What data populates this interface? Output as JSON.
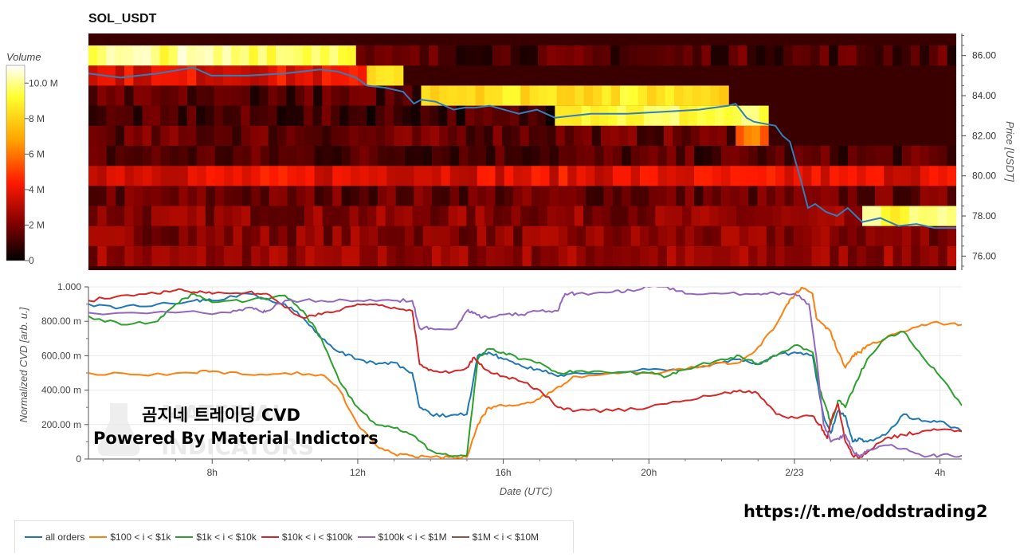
{
  "chart_data": [
    {
      "type": "heatmap",
      "title": "SOL_USDT",
      "colorbar": {
        "label": "Volume",
        "ticks": [
          "0",
          "2 M",
          "4 M",
          "6 M",
          "8 M",
          "10.0 M"
        ],
        "range": [
          0,
          11000000
        ],
        "colorscale": [
          "#000000",
          "#8b0000",
          "#ff0000",
          "#ffa500",
          "#ffff00",
          "#ffffff"
        ]
      },
      "y_axis": {
        "label": "Price [USDT]",
        "ticks": [
          "76.00",
          "78.00",
          "80.00",
          "82.00",
          "84.00",
          "86.00"
        ],
        "range": [
          75.3,
          87.1
        ],
        "position": "right"
      },
      "x_axis": {
        "range_hours": [
          4.6,
          28.6
        ],
        "grid": false
      },
      "price_bin_edges": [
        75.5,
        76.5,
        77.5,
        78.5,
        79.5,
        80.5,
        81.5,
        82.5,
        83.5,
        84.5,
        85.5,
        86.5,
        87.0
      ],
      "price_line": {
        "color": "#2f7fbf",
        "x": [
          4.6,
          5.5,
          6.5,
          7.5,
          8.0,
          9.0,
          10.0,
          11.0,
          11.5,
          12.0,
          12.3,
          12.8,
          13.3,
          13.6,
          13.8,
          14.2,
          14.7,
          15.0,
          15.3,
          15.7,
          16.5,
          17.0,
          17.5,
          18.5,
          19.5,
          20.5,
          21.5,
          22.3,
          22.5,
          22.8,
          23.0,
          23.3,
          23.6,
          23.8,
          24.0,
          24.3,
          24.5,
          24.7,
          25.0,
          25.3,
          25.6,
          26.0,
          26.5,
          27.0,
          27.5,
          28.0,
          28.6
        ],
        "y": [
          85.1,
          84.9,
          85.1,
          85.4,
          85.0,
          85.0,
          85.1,
          85.3,
          85.2,
          84.9,
          84.5,
          84.4,
          84.2,
          83.6,
          83.8,
          83.7,
          83.3,
          83.4,
          83.4,
          83.5,
          83.1,
          83.3,
          82.9,
          83.1,
          83.1,
          83.2,
          83.3,
          83.5,
          83.6,
          82.9,
          82.7,
          82.6,
          82.5,
          82.0,
          81.7,
          79.8,
          78.4,
          78.6,
          78.2,
          78.0,
          78.4,
          77.7,
          77.9,
          77.5,
          77.6,
          77.4,
          77.4
        ]
      },
      "liquidity_bands": [
        {
          "price": 76,
          "from": 4.6,
          "to": 28.6,
          "level": 0.22
        },
        {
          "price": 77,
          "from": 4.6,
          "to": 28.6,
          "level": 0.2
        },
        {
          "price": 78,
          "from": 4.6,
          "to": 26.0,
          "level": 0.2
        },
        {
          "price": 78,
          "from": 26.0,
          "to": 28.6,
          "level": 0.85
        },
        {
          "price": 79,
          "from": 4.6,
          "to": 28.6,
          "level": 0.15
        },
        {
          "price": 80,
          "from": 4.6,
          "to": 28.6,
          "level": 0.35
        },
        {
          "price": 81,
          "from": 4.6,
          "to": 28.6,
          "level": 0.12
        },
        {
          "price": 82,
          "from": 4.6,
          "to": 22.5,
          "level": 0.15
        },
        {
          "price": 82,
          "from": 22.5,
          "to": 23.4,
          "level": 0.55
        },
        {
          "price": 83,
          "from": 4.6,
          "to": 17.5,
          "level": 0.1
        },
        {
          "price": 83,
          "from": 17.5,
          "to": 23.4,
          "level": 0.85
        },
        {
          "price": 84,
          "from": 4.6,
          "to": 13.8,
          "level": 0.12
        },
        {
          "price": 84,
          "from": 13.8,
          "to": 22.3,
          "level": 0.78
        },
        {
          "price": 85,
          "from": 4.6,
          "to": 12.3,
          "level": 0.35
        },
        {
          "price": 85,
          "from": 12.3,
          "to": 13.3,
          "level": 0.8
        },
        {
          "price": 86,
          "from": 4.6,
          "to": 12.0,
          "level": 0.9
        },
        {
          "price": 86,
          "from": 12.0,
          "to": 28.6,
          "level": 0.12
        },
        {
          "price": 87,
          "from": 4.6,
          "to": 28.6,
          "level": 0.1
        }
      ]
    },
    {
      "type": "line",
      "xlabel": "Date (UTC)",
      "ylabel": "Normalized CVD [arb. u.]",
      "ylim": [
        0,
        1.0
      ],
      "xlim": [
        4.6,
        28.6
      ],
      "x_ticks": [
        {
          "v": 8,
          "label": "8h"
        },
        {
          "v": 12,
          "label": "12h"
        },
        {
          "v": 16,
          "label": "16h"
        },
        {
          "v": 20,
          "label": "20h"
        },
        {
          "v": 24,
          "label": "2/23"
        },
        {
          "v": 28,
          "label": "4h"
        }
      ],
      "y_ticks": [
        {
          "v": 0,
          "label": "0"
        },
        {
          "v": 0.2,
          "label": "200.00 m"
        },
        {
          "v": 0.4,
          "label": "400.00 m"
        },
        {
          "v": 0.6,
          "label": "600.00 m"
        },
        {
          "v": 0.8,
          "label": "800.00 m"
        },
        {
          "v": 1.0,
          "label": "1.000"
        }
      ],
      "grid": true,
      "series": [
        {
          "name": "all orders",
          "color": "#1f77b4",
          "x": [
            4.6,
            5.5,
            6.5,
            7.5,
            8.0,
            9.0,
            10.0,
            10.5,
            11.0,
            11.5,
            12.0,
            12.5,
            13.0,
            13.5,
            13.7,
            14.0,
            14.5,
            15.0,
            15.3,
            15.6,
            16.0,
            16.5,
            17.0,
            17.5,
            18.0,
            19.0,
            20.0,
            21.0,
            22.0,
            22.5,
            23.0,
            23.5,
            24.0,
            24.5,
            24.8,
            25.0,
            25.2,
            25.4,
            25.6,
            25.8,
            26.0,
            26.5,
            27.0,
            27.5,
            28.0,
            28.6
          ],
          "y": [
            0.9,
            0.88,
            0.9,
            0.92,
            0.92,
            0.96,
            0.9,
            0.82,
            0.7,
            0.62,
            0.58,
            0.55,
            0.56,
            0.5,
            0.3,
            0.26,
            0.25,
            0.26,
            0.6,
            0.62,
            0.58,
            0.54,
            0.52,
            0.48,
            0.5,
            0.5,
            0.52,
            0.52,
            0.56,
            0.58,
            0.55,
            0.6,
            0.62,
            0.6,
            0.25,
            0.15,
            0.28,
            0.25,
            0.1,
            0.12,
            0.1,
            0.14,
            0.26,
            0.22,
            0.22,
            0.16
          ]
        },
        {
          "name": "$100 < i < $1k",
          "color": "#ff7f0e",
          "x": [
            4.6,
            6.0,
            7.5,
            8.0,
            9.0,
            10.0,
            11.0,
            11.5,
            12.0,
            12.5,
            13.0,
            13.5,
            14.0,
            14.5,
            15.0,
            15.3,
            15.6,
            16.0,
            16.5,
            17.0,
            17.5,
            18.0,
            19.0,
            20.0,
            21.0,
            22.0,
            22.5,
            23.0,
            23.5,
            23.8,
            24.0,
            24.2,
            24.5,
            24.6,
            24.8,
            25.0,
            25.2,
            25.4,
            25.6,
            25.8,
            26.0,
            26.5,
            27.0,
            27.5,
            28.0,
            28.6
          ],
          "y": [
            0.5,
            0.49,
            0.5,
            0.51,
            0.49,
            0.5,
            0.49,
            0.4,
            0.2,
            0.08,
            0.03,
            0.02,
            0.01,
            0.01,
            0.01,
            0.2,
            0.3,
            0.31,
            0.32,
            0.35,
            0.42,
            0.48,
            0.5,
            0.5,
            0.52,
            0.56,
            0.56,
            0.65,
            0.78,
            0.9,
            0.95,
            1.0,
            0.96,
            0.82,
            0.78,
            0.74,
            0.62,
            0.53,
            0.6,
            0.62,
            0.66,
            0.7,
            0.74,
            0.78,
            0.79,
            0.78
          ]
        },
        {
          "name": "$1k < i < $10k",
          "color": "#2ca02c",
          "x": [
            4.6,
            5.5,
            6.5,
            7.0,
            7.5,
            8.0,
            9.0,
            10.0,
            10.5,
            11.0,
            11.5,
            12.0,
            12.5,
            13.0,
            13.5,
            14.0,
            14.5,
            15.0,
            15.3,
            15.6,
            16.0,
            16.5,
            17.0,
            17.5,
            18.0,
            19.0,
            20.0,
            20.5,
            21.0,
            22.0,
            22.5,
            23.0,
            23.5,
            24.0,
            24.5,
            24.7,
            24.9,
            25.0,
            25.2,
            25.4,
            25.7,
            26.0,
            26.5,
            27.0,
            27.5,
            28.0,
            28.6
          ],
          "y": [
            0.83,
            0.78,
            0.8,
            0.9,
            0.96,
            0.91,
            0.92,
            0.95,
            0.86,
            0.7,
            0.45,
            0.3,
            0.2,
            0.18,
            0.14,
            0.05,
            0.02,
            0.02,
            0.58,
            0.64,
            0.62,
            0.58,
            0.56,
            0.5,
            0.51,
            0.5,
            0.5,
            0.48,
            0.52,
            0.58,
            0.6,
            0.55,
            0.6,
            0.66,
            0.62,
            0.4,
            0.28,
            0.2,
            0.34,
            0.3,
            0.45,
            0.58,
            0.7,
            0.74,
            0.6,
            0.48,
            0.31
          ]
        },
        {
          "name": "$10k < i < $100k",
          "color": "#d62728",
          "x": [
            4.6,
            5.5,
            6.5,
            7.0,
            7.5,
            8.0,
            9.0,
            9.5,
            10.0,
            10.5,
            11.0,
            11.5,
            12.0,
            12.5,
            13.0,
            13.5,
            13.7,
            14.0,
            14.5,
            15.0,
            15.2,
            15.5,
            16.0,
            16.5,
            17.0,
            17.5,
            18.0,
            19.0,
            20.0,
            21.0,
            22.0,
            22.5,
            23.0,
            23.5,
            24.0,
            24.5,
            24.7,
            24.9,
            25.0,
            25.2,
            25.4,
            25.6,
            25.8,
            26.0,
            26.5,
            27.0,
            27.5,
            28.0,
            28.6
          ],
          "y": [
            0.92,
            0.95,
            0.96,
            0.98,
            0.97,
            0.96,
            0.97,
            0.96,
            0.88,
            0.82,
            0.84,
            0.86,
            0.9,
            0.9,
            0.88,
            0.86,
            0.55,
            0.52,
            0.5,
            0.53,
            0.59,
            0.52,
            0.48,
            0.45,
            0.4,
            0.3,
            0.28,
            0.28,
            0.3,
            0.34,
            0.38,
            0.4,
            0.38,
            0.26,
            0.24,
            0.25,
            0.2,
            0.12,
            0.22,
            0.32,
            0.1,
            0.02,
            0.01,
            0.04,
            0.12,
            0.14,
            0.16,
            0.17,
            0.16
          ]
        },
        {
          "name": "$100k < i < $1M",
          "color": "#9467bd",
          "x": [
            4.6,
            7.0,
            8.5,
            9.0,
            9.3,
            9.5,
            10.0,
            11.0,
            12.0,
            13.0,
            13.5,
            13.7,
            14.0,
            14.7,
            15.0,
            15.2,
            15.4,
            16.0,
            16.5,
            17.0,
            17.5,
            17.7,
            18.0,
            19.0,
            19.5,
            20.0,
            20.5,
            21.0,
            22.0,
            23.0,
            23.5,
            24.0,
            24.4,
            24.6,
            24.8,
            25.0,
            25.2,
            25.4,
            25.6,
            25.8,
            26.0,
            26.5,
            27.0,
            27.5,
            28.0,
            28.6
          ],
          "y": [
            0.85,
            0.85,
            0.85,
            0.88,
            0.86,
            0.86,
            0.92,
            0.92,
            0.92,
            0.92,
            0.92,
            0.76,
            0.76,
            0.76,
            0.86,
            0.85,
            0.82,
            0.84,
            0.84,
            0.86,
            0.86,
            0.96,
            0.96,
            0.97,
            0.98,
            1.0,
            1.0,
            0.96,
            0.96,
            0.96,
            0.96,
            0.96,
            0.9,
            0.6,
            0.2,
            0.1,
            0.12,
            0.14,
            0.05,
            0.01,
            0.05,
            0.08,
            0.06,
            0.02,
            0.02,
            0.02
          ]
        },
        {
          "name": "$1M < i < $10M",
          "color": "#8c564b",
          "x": [],
          "y": []
        }
      ]
    }
  ],
  "overlay": {
    "line1": "곰지네 트레이딩 CVD",
    "line2": "Powered By Material Indictors",
    "link": "https://t.me/oddstrading2",
    "watermark": [
      "MATERIAL",
      "INDICATORS"
    ]
  }
}
